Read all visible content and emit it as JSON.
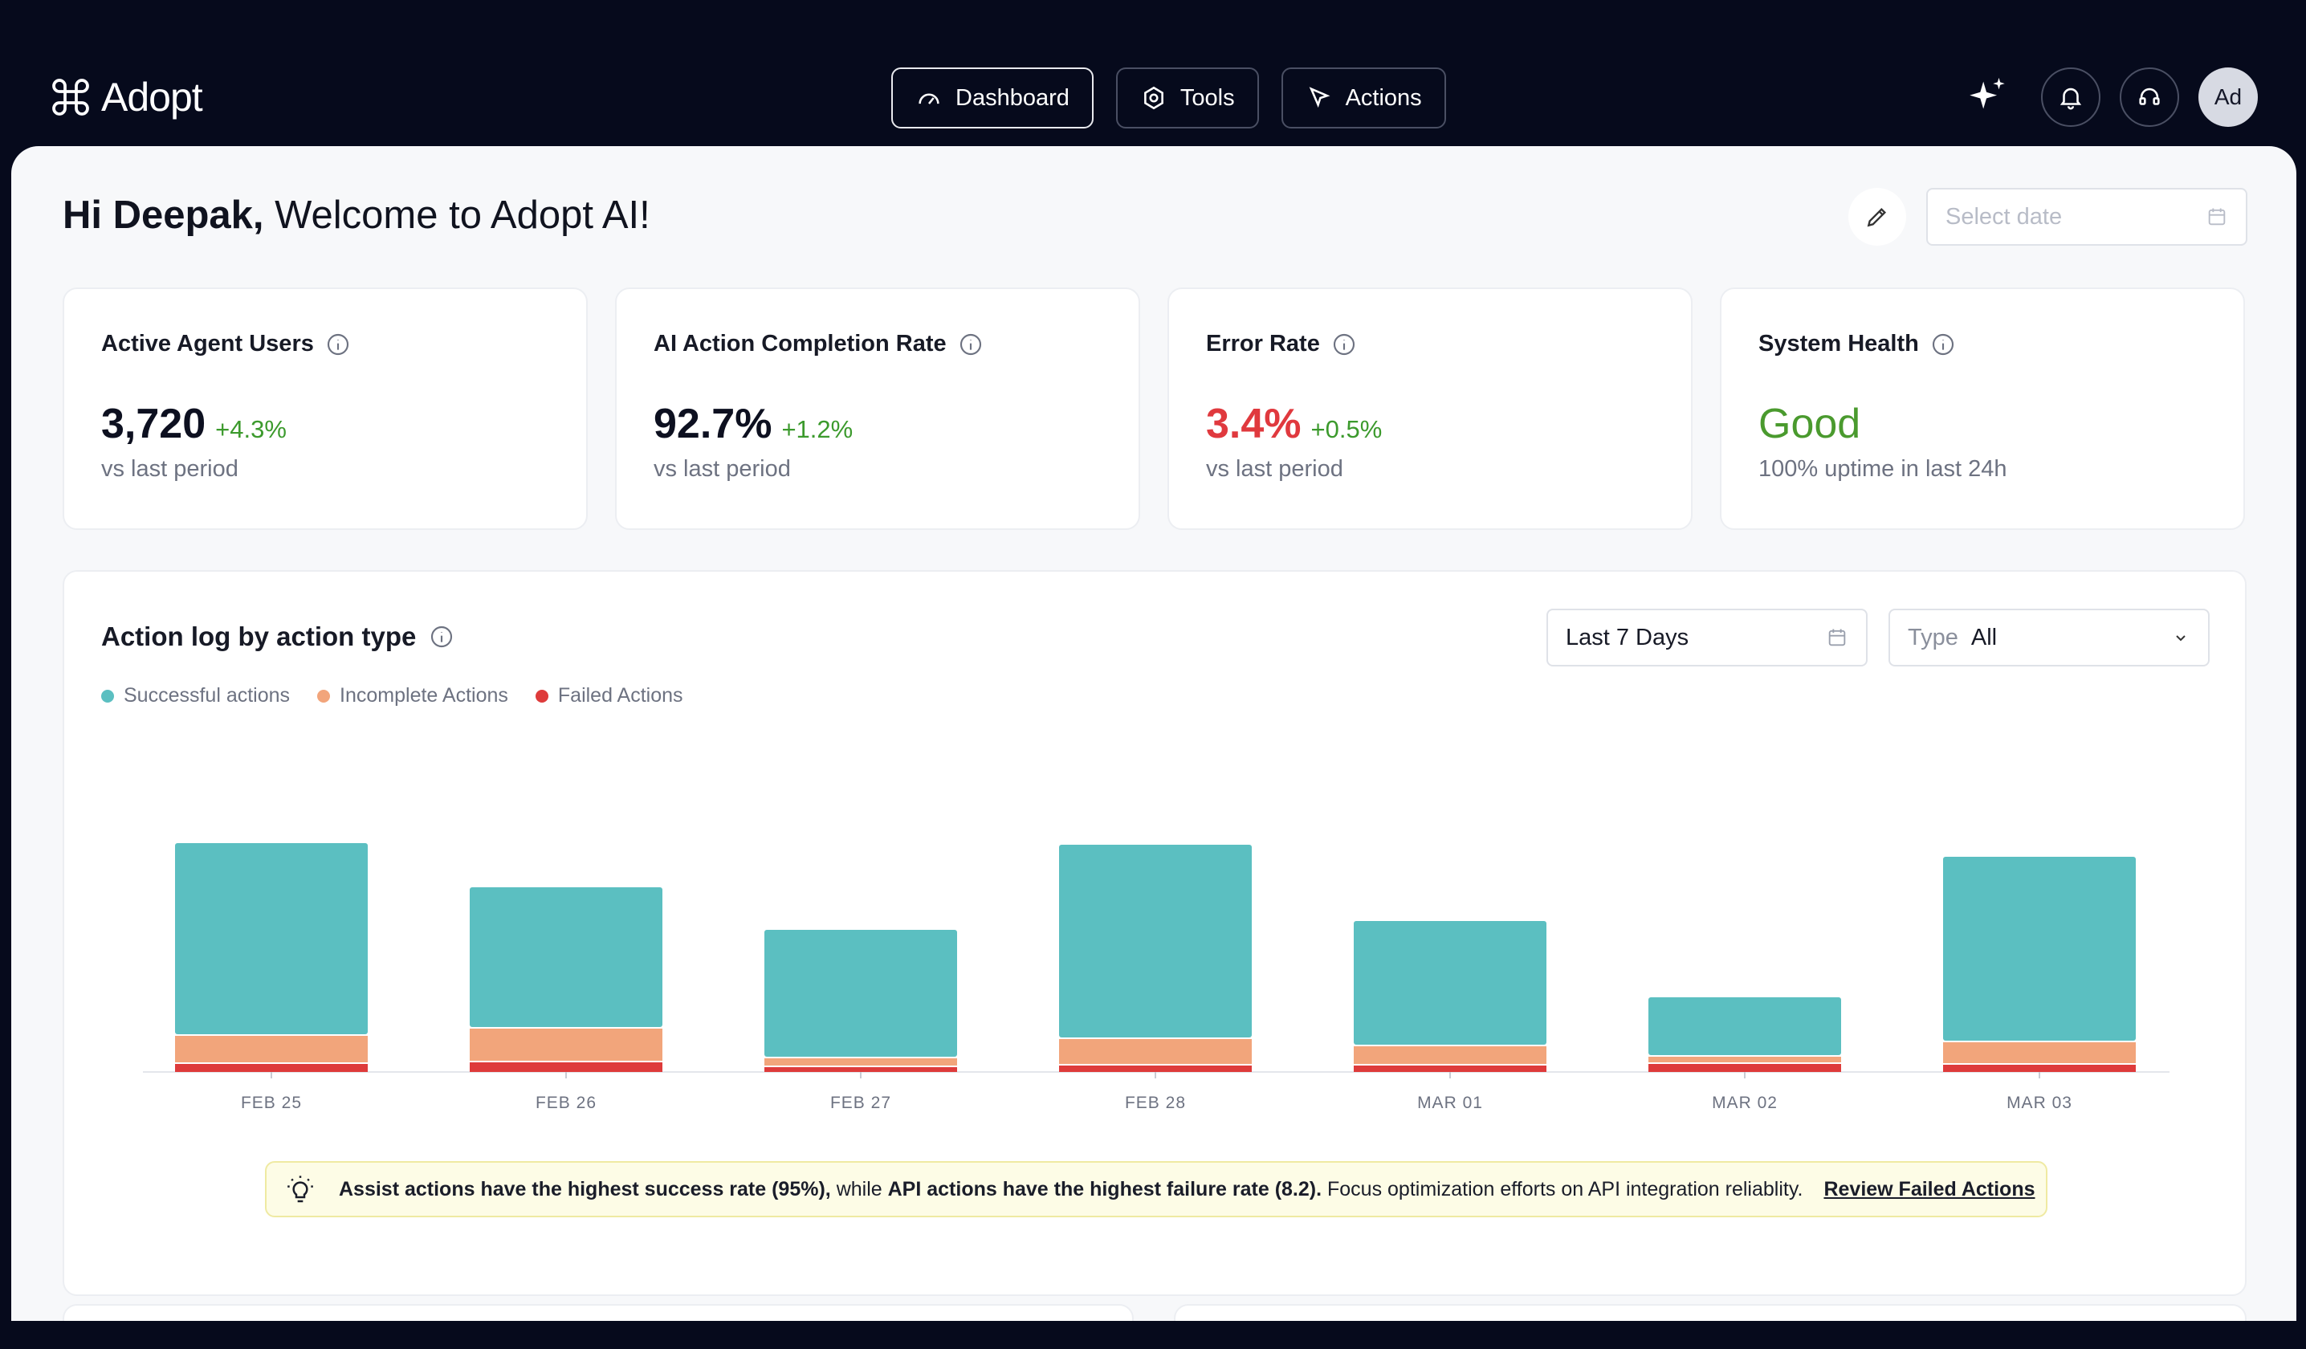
{
  "app": {
    "name": "Adopt"
  },
  "nav": {
    "items": [
      {
        "label": "Dashboard",
        "active": true
      },
      {
        "label": "Tools",
        "active": false
      },
      {
        "label": "Actions",
        "active": false
      }
    ]
  },
  "user": {
    "avatar_initials": "Ad"
  },
  "header": {
    "greeting_name": "Hi Deepak,",
    "greeting_rest": " Welcome to Adopt AI!",
    "date_placeholder": "Select date"
  },
  "metrics": [
    {
      "title": "Active Agent Users",
      "value": "3,720",
      "delta": "+4.3%",
      "sub": "vs last period"
    },
    {
      "title": "AI Action Completion Rate",
      "value": "92.7%",
      "delta": "+1.2%",
      "sub": "vs last period"
    },
    {
      "title": "Error Rate",
      "value": "3.4%",
      "delta": "+0.5%",
      "sub": "vs last period"
    },
    {
      "title": "System Health",
      "value": "Good",
      "delta": "",
      "sub": "100% uptime in last 24h"
    }
  ],
  "action_log": {
    "title": "Action log by action type",
    "range_label": "Last 7 Days",
    "type_label": "Type",
    "type_value": "All",
    "legend": [
      "Successful actions",
      "Incomplete Actions",
      "Failed Actions"
    ]
  },
  "colors": {
    "successful": "#5bbfc1",
    "incomplete": "#f2a57b",
    "failed": "#de3b3b"
  },
  "chart_data": {
    "type": "bar",
    "stacked": true,
    "categories": [
      "FEB 25",
      "FEB 26",
      "FEB 27",
      "FEB 28",
      "MAR 01",
      "MAR 02",
      "MAR 03"
    ],
    "series": [
      {
        "name": "Successful actions",
        "values": [
          240,
          176,
          160,
          242,
          156,
          74,
          231
        ]
      },
      {
        "name": "Incomplete Actions",
        "values": [
          35,
          42,
          11,
          33,
          24,
          9,
          28
        ]
      },
      {
        "name": "Failed Actions",
        "values": [
          10,
          12,
          6,
          8,
          8,
          10,
          9
        ]
      }
    ],
    "ylim": [
      0,
      300
    ],
    "grid": false
  },
  "insight": {
    "bold1": "Assist actions have the highest success rate (95%),",
    "mid": " while ",
    "bold2": "API actions have the highest failure rate (8.2).",
    "rest": " Focus optimization efforts on API integration reliablity.",
    "link": "Review Failed Actions"
  }
}
